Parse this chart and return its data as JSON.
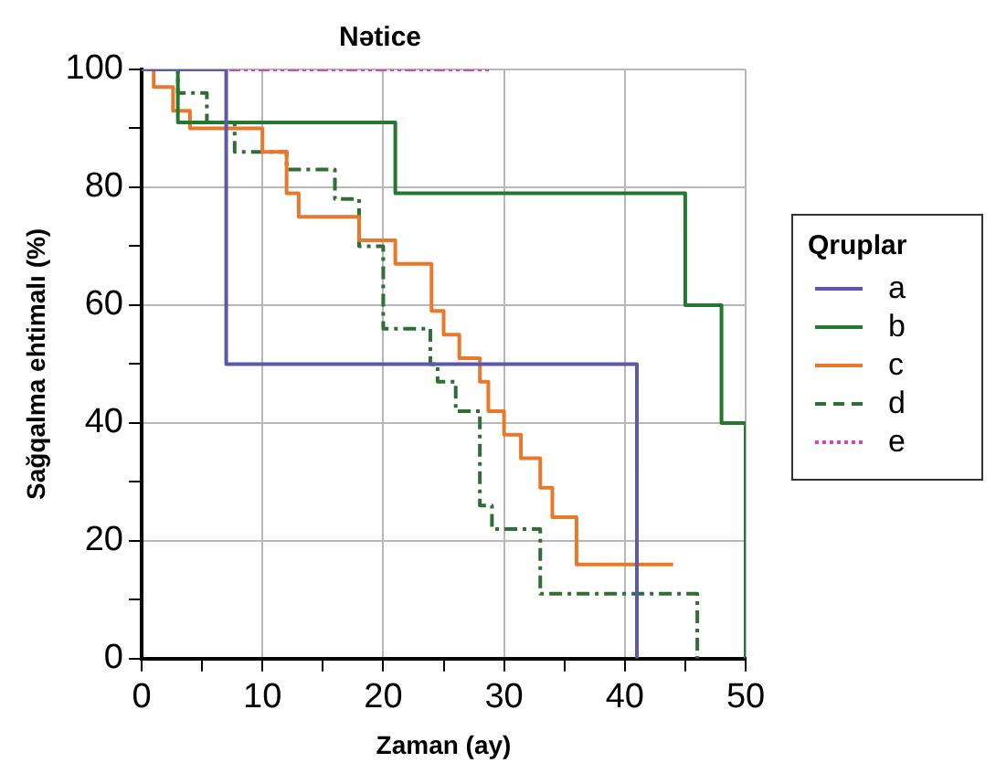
{
  "chart_data": {
    "type": "step",
    "title": "Nətice",
    "xlabel": "Zaman (ay)",
    "ylabel": "Sağqalma ehtimalı (%)",
    "legend_title": "Qruplar",
    "legend": "right",
    "grid": true,
    "marker": "none",
    "xlim": [
      0,
      50
    ],
    "xticks": [
      0,
      {
        "value": 5,
        "label": null
      },
      10,
      {
        "value": 15,
        "label": null
      },
      20,
      {
        "value": 25,
        "label": null
      },
      30,
      {
        "value": 35,
        "label": null
      },
      40,
      {
        "value": 45,
        "label": null
      },
      50
    ],
    "ylim": [
      0,
      100
    ],
    "yticks": [
      0,
      {
        "value": 10,
        "label": null
      },
      20,
      {
        "value": 30,
        "label": null
      },
      40,
      {
        "value": 50,
        "label": null
      },
      60,
      {
        "value": 70,
        "label": null
      },
      80,
      {
        "value": 90,
        "label": null
      },
      100
    ],
    "series": [
      {
        "name": "a",
        "color": "#5a5aa8",
        "line_style": "solid",
        "x": [
          0,
          7,
          41
        ],
        "values": [
          100,
          50,
          0
        ]
      },
      {
        "name": "b",
        "color": "#23772e",
        "line_style": "solid",
        "x": [
          0,
          3,
          21,
          45,
          48,
          50
        ],
        "values": [
          100,
          91,
          79,
          60,
          40,
          0
        ]
      },
      {
        "name": "c",
        "color": "#e8782a",
        "line_style": "solid",
        "x": [
          0,
          1,
          2.6,
          4,
          10,
          12,
          13,
          18,
          21,
          24,
          25,
          26.3,
          28,
          28.7,
          30,
          31.4,
          33,
          34,
          36,
          44
        ],
        "values": [
          100,
          97,
          93,
          90,
          86,
          79,
          75,
          71,
          67,
          59,
          55,
          51,
          47,
          42,
          38,
          34,
          29,
          24,
          16,
          16
        ]
      },
      {
        "name": "d",
        "color": "#2f6e35",
        "line_style": "dashed",
        "x": [
          0,
          3,
          5.4,
          7.7,
          12,
          16,
          18,
          20,
          23.9,
          24.5,
          26,
          28,
          29,
          33,
          46
        ],
        "values": [
          100,
          96,
          91,
          86,
          83,
          78,
          70,
          56,
          50,
          47,
          42,
          26,
          22,
          11,
          0
        ]
      },
      {
        "name": "e",
        "color": "#d048b8",
        "line_style": "dotted",
        "x": [
          0,
          29
        ],
        "values": [
          100,
          100
        ]
      }
    ]
  }
}
